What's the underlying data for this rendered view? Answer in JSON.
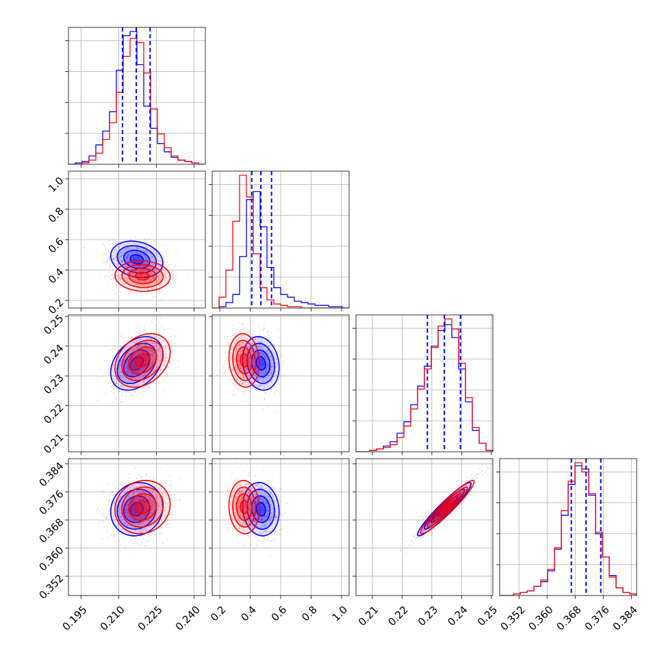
{
  "chart_data": {
    "type": "corner",
    "title": "",
    "grid": true,
    "colors": {
      "series_a": "#0000ff",
      "series_b": "#ff0000"
    },
    "series": [
      {
        "color": "#0000ff",
        "quantiles": [
          [
            0.2115,
            0.217,
            0.2225
          ],
          [
            0.41,
            0.47,
            0.54
          ],
          [
            0.2285,
            0.2342,
            0.2396
          ],
          [
            0.3669,
            0.3711,
            0.3753
          ]
        ],
        "histograms": [
          {
            "counts": [
              0,
              1,
              2,
              6,
              14,
              24,
              38,
              68,
              93,
              96,
              72,
              42,
              26,
              15,
              9,
              5,
              3,
              2,
              1,
              0
            ]
          },
          {
            "counts": [
              0,
              1,
              4,
              10,
              38,
              80,
              86,
              60,
              30,
              15,
              10,
              8,
              5,
              4,
              3,
              2,
              2,
              1,
              1,
              0
            ]
          },
          {
            "counts": [
              0,
              0,
              1,
              2,
              4,
              7,
              13,
              21,
              33,
              46,
              60,
              74,
              85,
              89,
              80,
              58,
              35,
              15,
              6,
              1
            ]
          },
          {
            "counts": [
              0,
              0,
              1,
              2,
              3,
              6,
              9,
              16,
              30,
              52,
              72,
              84,
              82,
              65,
              40,
              25,
              13,
              5,
              2,
              1
            ]
          }
        ],
        "pairs": [
          {
            "i": 1,
            "j": 0,
            "mean": [
              0.2172,
              0.47
            ],
            "sd": [
              0.0052,
              0.06
            ],
            "rho": -0.2
          },
          {
            "i": 2,
            "j": 0,
            "mean": [
              0.2172,
              0.2342
            ],
            "sd": [
              0.0052,
              0.0045
            ],
            "rho": 0.35
          },
          {
            "i": 2,
            "j": 1,
            "mean": [
              0.47,
              0.2342
            ],
            "sd": [
              0.06,
              0.0045
            ],
            "rho": -0.15
          },
          {
            "i": 3,
            "j": 0,
            "mean": [
              0.2172,
              0.3711
            ],
            "sd": [
              0.0052,
              0.0038
            ],
            "rho": 0.1
          },
          {
            "i": 3,
            "j": 1,
            "mean": [
              0.47,
              0.3711
            ],
            "sd": [
              0.06,
              0.0038
            ],
            "rho": -0.1
          },
          {
            "i": 3,
            "j": 2,
            "mean": [
              0.2342,
              0.3711
            ],
            "sd": [
              0.0045,
              0.0038
            ],
            "rho": 0.95
          }
        ]
      },
      {
        "color": "#ff0000",
        "histograms": [
          {
            "counts": [
              0,
              0,
              1,
              3,
              8,
              18,
              30,
              52,
              78,
              91,
              88,
              66,
              40,
              22,
              12,
              6,
              3,
              2,
              1,
              0
            ]
          },
          {
            "counts": [
              0,
              8,
              28,
              64,
              98,
              82,
              40,
              15,
              6,
              3,
              2,
              1,
              1,
              0,
              0,
              0,
              0,
              0,
              0,
              0
            ]
          },
          {
            "counts": [
              0,
              0,
              1,
              2,
              3,
              5,
              10,
              18,
              30,
              44,
              58,
              73,
              88,
              93,
              86,
              62,
              38,
              17,
              6,
              1
            ]
          },
          {
            "counts": [
              0,
              0,
              1,
              2,
              3,
              6,
              10,
              17,
              31,
              55,
              74,
              86,
              80,
              66,
              41,
              25,
              12,
              5,
              2,
              1
            ]
          }
        ],
        "pairs": [
          {
            "i": 1,
            "j": 0,
            "mean": [
              0.2195,
              0.36
            ],
            "sd": [
              0.0055,
              0.05
            ],
            "rho": -0.05
          },
          {
            "i": 2,
            "j": 0,
            "mean": [
              0.2195,
              0.2352
            ],
            "sd": [
              0.0055,
              0.0045
            ],
            "rho": 0.3
          },
          {
            "i": 2,
            "j": 1,
            "mean": [
              0.36,
              0.2352
            ],
            "sd": [
              0.05,
              0.0045
            ],
            "rho": -0.1
          },
          {
            "i": 3,
            "j": 0,
            "mean": [
              0.2195,
              0.3717
            ],
            "sd": [
              0.0055,
              0.0038
            ],
            "rho": 0.1
          },
          {
            "i": 3,
            "j": 1,
            "mean": [
              0.36,
              0.3717
            ],
            "sd": [
              0.05,
              0.0038
            ],
            "rho": -0.05
          },
          {
            "i": 3,
            "j": 2,
            "mean": [
              0.2352,
              0.3717
            ],
            "sd": [
              0.0045,
              0.0038
            ],
            "rho": 0.95
          }
        ]
      }
    ],
    "parameters": [
      {
        "range": [
          0.19,
          0.2445
        ],
        "ticks": [
          0.195,
          0.21,
          0.225,
          0.24
        ],
        "tick_labels": [
          "0.195",
          "0.210",
          "0.225",
          "0.240"
        ]
      },
      {
        "range": [
          0.15,
          1.05
        ],
        "ticks": [
          0.2,
          0.4,
          0.6,
          0.8,
          1.0
        ],
        "tick_labels": [
          "0.2",
          "0.4",
          "0.6",
          "0.8",
          "1.0"
        ]
      },
      {
        "range": [
          0.2045,
          0.2505
        ],
        "ticks": [
          0.21,
          0.22,
          0.23,
          0.24,
          0.25
        ],
        "tick_labels": [
          "0.21",
          "0.22",
          "0.23",
          "0.24",
          "0.25"
        ]
      },
      {
        "range": [
          0.3465,
          0.3855
        ],
        "ticks": [
          0.352,
          0.36,
          0.368,
          0.376,
          0.384
        ],
        "tick_labels": [
          "0.352",
          "0.360",
          "0.368",
          "0.376",
          "0.384"
        ]
      }
    ],
    "xlabel": "",
    "ylabel": ""
  }
}
